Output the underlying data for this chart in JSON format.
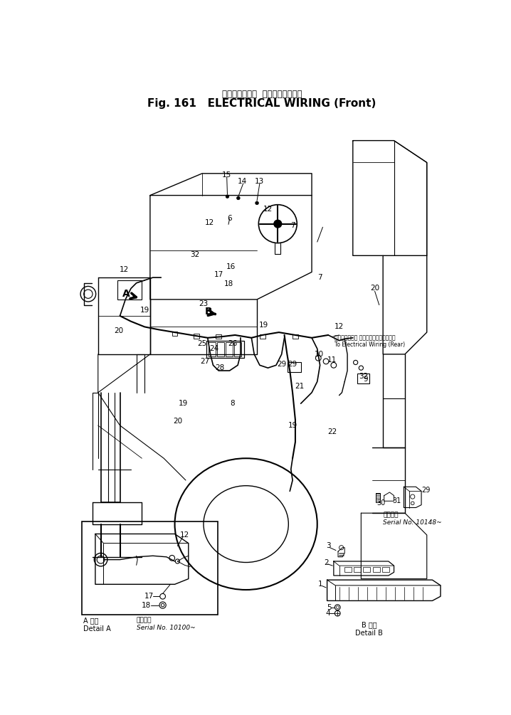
{
  "title_jp": "エレクトリカル  ワイヤリング　前",
  "title_en": "Fig. 161   ELECTRICAL WIRING (Front)",
  "bg_color": "#ffffff",
  "lc": "#000000",
  "detail_a_label": "A 詳細\nDetail A",
  "detail_b_label": "B 詳細\nDetail B",
  "serial_a": "適用号機\nSerial No. 10100~",
  "serial_b": "適用号機\nSerial No. 10148~",
  "rear_jp": "エレクトリカル ワイヤリングへ（リヤ）",
  "rear_en": "To Electrical Wiring (Rear)"
}
